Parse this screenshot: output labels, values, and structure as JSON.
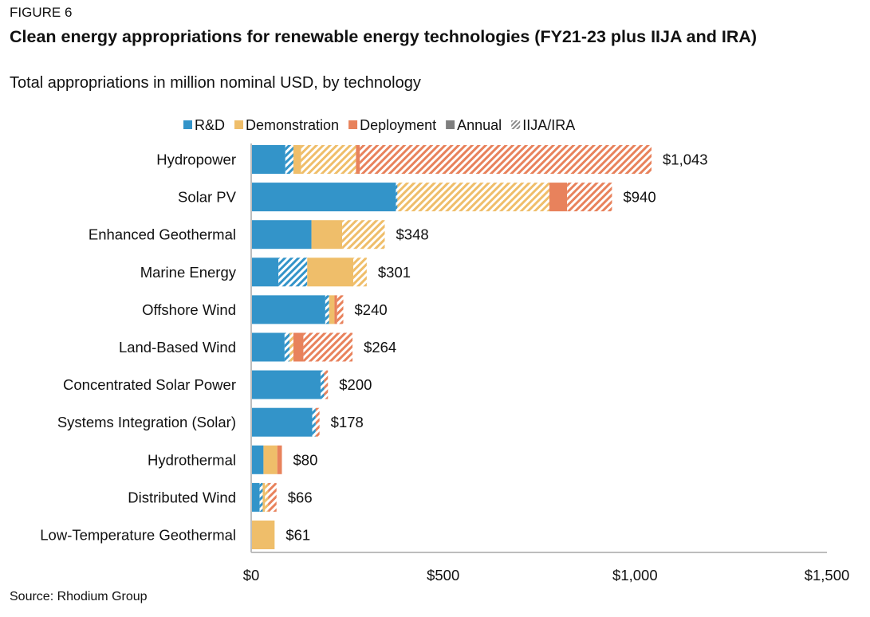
{
  "figure_label": "FIGURE 6",
  "title": "Clean energy appropriations for renewable energy technologies (FY21-23 plus IIJA and IRA)",
  "subtitle": "Total appropriations in million nominal USD, by technology",
  "source": "Source: Rhodium Group",
  "colors": {
    "rd": "#3394c9",
    "demonstration": "#efbe6a",
    "deployment": "#e8825c",
    "annual": "#7f7f7f"
  },
  "chart_data": {
    "type": "bar",
    "orientation": "horizontal",
    "stacked": true,
    "legend": {
      "position": "top",
      "items": [
        {
          "key": "rd",
          "label": "R&D",
          "style": "solid"
        },
        {
          "key": "demonstration",
          "label": "Demonstration",
          "style": "solid"
        },
        {
          "key": "deployment",
          "label": "Deployment",
          "style": "solid"
        },
        {
          "key": "annual",
          "label": "Annual",
          "style": "solid"
        },
        {
          "key": "iija_ira",
          "label": "IIJA/IRA",
          "style": "hatched"
        }
      ]
    },
    "categories": [
      "Hydropower",
      "Solar PV",
      "Enhanced Geothermal",
      "Marine Energy",
      "Offshore Wind",
      "Land-Based Wind",
      "Concentrated Solar Power",
      "Systems Integration (Solar)",
      "Hydrothermal",
      "Distributed Wind",
      "Low-Temperature Geothermal"
    ],
    "series": [
      {
        "name": "R&D",
        "color_key": "rd",
        "part": "Annual",
        "values": [
          89,
          377,
          157,
          71,
          193,
          87,
          181,
          159,
          32,
          22,
          0
        ]
      },
      {
        "name": "R&D",
        "color_key": "rd",
        "part": "IIJA/IRA",
        "values": [
          21,
          4,
          0,
          75,
          10,
          13,
          9,
          9,
          0,
          8,
          0
        ]
      },
      {
        "name": "Demonstration",
        "color_key": "demonstration",
        "part": "Annual",
        "values": [
          20,
          0,
          80,
          120,
          14,
          0,
          0,
          0,
          36,
          6,
          61
        ]
      },
      {
        "name": "Demonstration",
        "color_key": "demonstration",
        "part": "IIJA/IRA",
        "values": [
          143,
          396,
          111,
          35,
          0,
          10,
          0,
          0,
          0,
          8,
          0
        ]
      },
      {
        "name": "Deployment",
        "color_key": "deployment",
        "part": "Annual",
        "values": [
          10,
          46,
          0,
          0,
          7,
          26,
          0,
          0,
          12,
          0,
          0
        ]
      },
      {
        "name": "Deployment",
        "color_key": "deployment",
        "part": "IIJA/IRA",
        "values": [
          760,
          117,
          0,
          0,
          16,
          128,
          10,
          10,
          0,
          22,
          0
        ]
      }
    ],
    "totals": [
      1043,
      940,
      348,
      301,
      240,
      264,
      200,
      178,
      80,
      66,
      61
    ],
    "data_labels": [
      "$1,043",
      "$940",
      "$348",
      "$301",
      "$240",
      "$264",
      "$200",
      "$178",
      "$80",
      "$66",
      "$61"
    ],
    "x_ticks": [
      0,
      500,
      1000,
      1500
    ],
    "x_tick_labels": [
      "$0",
      "$500",
      "$1,000",
      "$1,500"
    ],
    "xlim": [
      0,
      1500
    ],
    "grid": false,
    "xlabel": "",
    "ylabel": ""
  }
}
